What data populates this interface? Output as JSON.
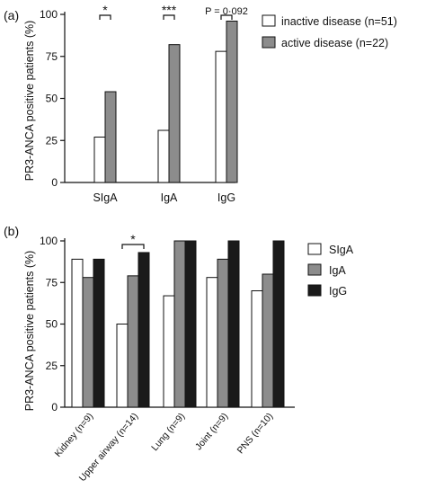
{
  "chart_data": [
    {
      "panel_label": "(a)",
      "type": "bar",
      "ylabel": "PR3-ANCA positive patients (%)",
      "ylim": [
        0,
        100
      ],
      "yticks": [
        0,
        25,
        50,
        75,
        100
      ],
      "categories": [
        "SIgA",
        "IgA",
        "IgG"
      ],
      "series": [
        {
          "name": "inactive disease (n=51)",
          "color": "#ffffff",
          "values": [
            27,
            31,
            78
          ]
        },
        {
          "name": "active disease (n=22)",
          "color": "#8c8c8c",
          "values": [
            54,
            82,
            96
          ]
        }
      ],
      "annotations": [
        "*",
        "***",
        "P = 0·092"
      ],
      "legend_position": "right"
    },
    {
      "panel_label": "(b)",
      "type": "bar",
      "ylabel": "PR3-ANCA positive patients (%)",
      "ylim": [
        0,
        100
      ],
      "yticks": [
        0,
        25,
        50,
        75,
        100
      ],
      "categories": [
        "Kidney (n=9)",
        "Upper airway (n=14)",
        "Lung (n=9)",
        "Joint (n=9)",
        "PNS (n=10)"
      ],
      "series": [
        {
          "name": "SIgA",
          "color": "#ffffff",
          "values": [
            89,
            50,
            67,
            78,
            70
          ]
        },
        {
          "name": "IgA",
          "color": "#8c8c8c",
          "values": [
            78,
            79,
            100,
            89,
            80
          ]
        },
        {
          "name": "IgG",
          "color": "#1a1a1a",
          "values": [
            89,
            93,
            100,
            100,
            100
          ]
        }
      ],
      "annotations": [
        "*"
      ],
      "legend_position": "right"
    }
  ]
}
